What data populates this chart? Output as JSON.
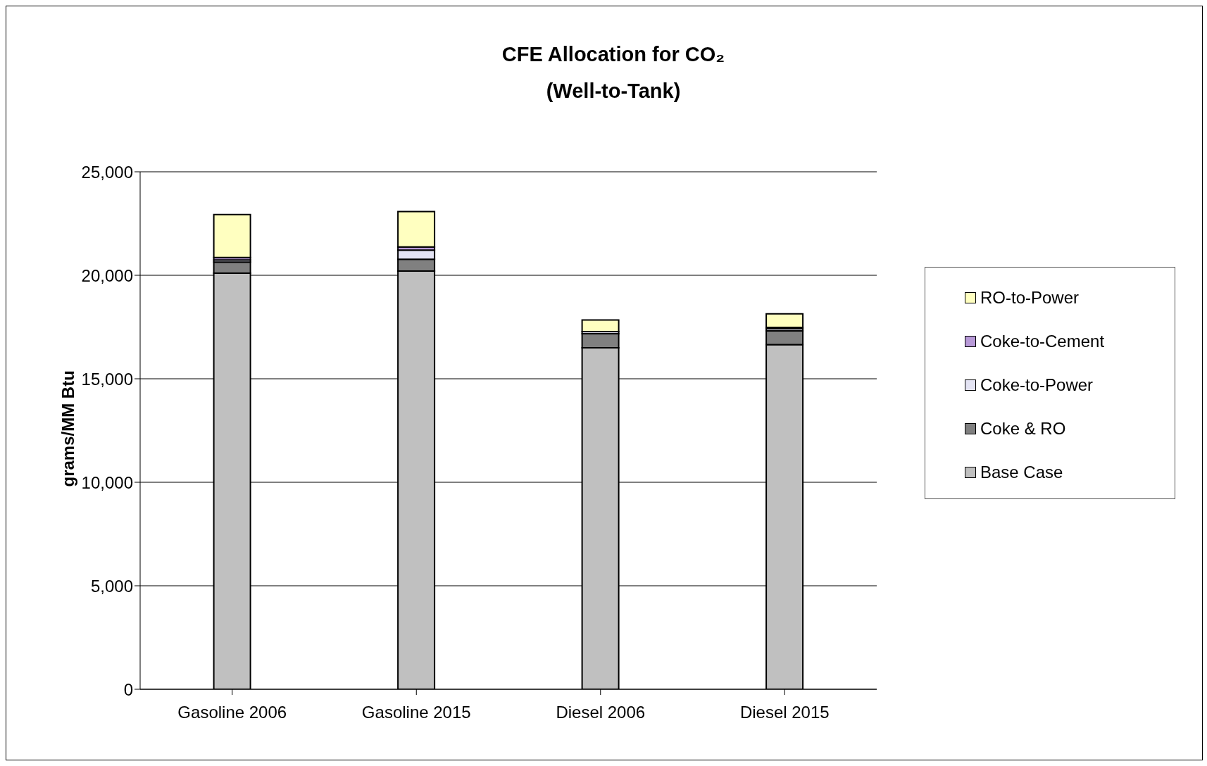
{
  "chart_data": {
    "type": "bar",
    "title": "CFE Allocation for CO₂",
    "subtitle": "(Well-to-Tank)",
    "ylabel": "grams/MM Btu",
    "categories": [
      "Gasoline 2006",
      "Gasoline 2015",
      "Diesel 2006",
      "Diesel 2015"
    ],
    "stacked": true,
    "ylim": [
      0,
      25000
    ],
    "yticks": [
      {
        "value": 0,
        "label": "0"
      },
      {
        "value": 5000,
        "label": "5,000"
      },
      {
        "value": 10000,
        "label": "10,000"
      },
      {
        "value": 15000,
        "label": "15,000"
      },
      {
        "value": 20000,
        "label": "20,000"
      },
      {
        "value": 25000,
        "label": "25,000"
      }
    ],
    "grid": "y",
    "legend": "right",
    "series": [
      {
        "name": "Base Case",
        "color": "#c0c0c0",
        "values": [
          20100,
          20200,
          16500,
          16650
        ]
      },
      {
        "name": "Coke & RO",
        "color": "#808080",
        "values": [
          540,
          570,
          680,
          660
        ]
      },
      {
        "name": "Coke-to-Power",
        "color": "#e4e4f4",
        "values": [
          100,
          450,
          100,
          110
        ]
      },
      {
        "name": "Coke-to-Cement",
        "color": "#b89ad8",
        "values": [
          120,
          150,
          null,
          60
        ]
      },
      {
        "name": "RO-to-Power",
        "color": "#ffffc0",
        "values": [
          2070,
          1710,
          560,
          660
        ]
      }
    ]
  }
}
